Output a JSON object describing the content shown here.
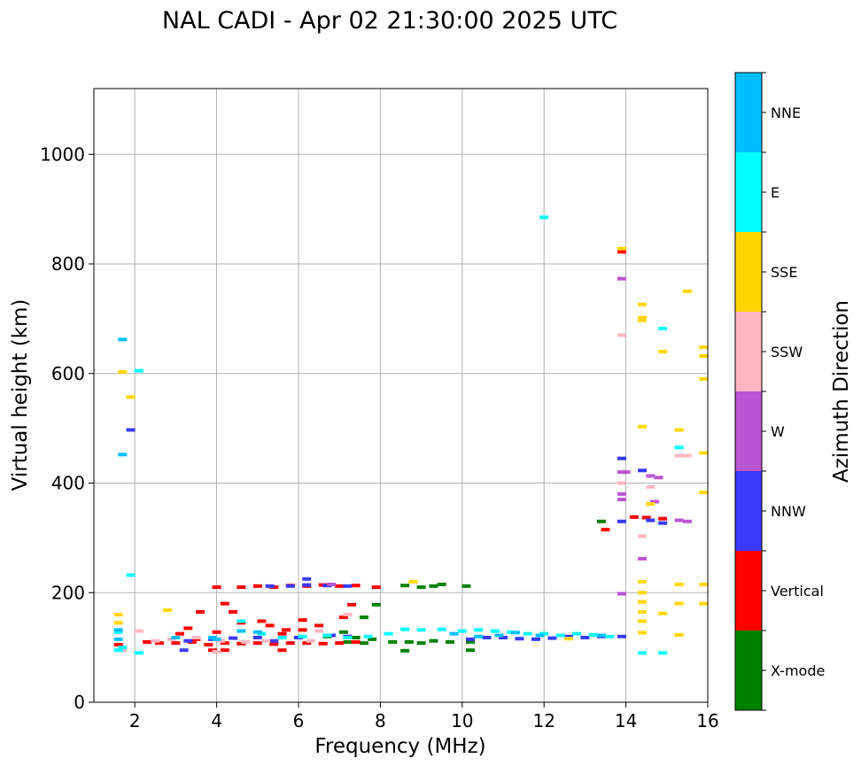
{
  "chart_data": {
    "type": "scatter",
    "title": "NAL CADI - Apr 02 21:30:00 2025 UTC",
    "xlabel": "Frequency (MHz)",
    "ylabel": "Virtual height (km)",
    "xlim": [
      1,
      16
    ],
    "ylim": [
      0,
      1120
    ],
    "xticks": [
      2,
      4,
      6,
      8,
      10,
      12,
      14,
      16
    ],
    "yticks": [
      0,
      200,
      400,
      600,
      800,
      1000
    ],
    "grid": true,
    "colorbar": {
      "label": "Azimuth Direction",
      "position": "right",
      "categories": [
        {
          "name": "X-mode",
          "color": "#008000"
        },
        {
          "name": "Vertical",
          "color": "#ff0000"
        },
        {
          "name": "NNW",
          "color": "#3a3aff"
        },
        {
          "name": "W",
          "color": "#ba55d3"
        },
        {
          "name": "SSW",
          "color": "#ffb6c1"
        },
        {
          "name": "SSE",
          "color": "#ffd700"
        },
        {
          "name": "E",
          "color": "#00ffff"
        },
        {
          "name": "NNE",
          "color": "#00bfff"
        }
      ]
    },
    "series": [
      {
        "name": "X-mode",
        "points": [
          [
            7.8,
            115
          ],
          [
            8.3,
            110
          ],
          [
            8.7,
            110
          ],
          [
            9.0,
            108
          ],
          [
            9.3,
            112
          ],
          [
            9.7,
            110
          ],
          [
            10.2,
            110
          ],
          [
            7.2,
            110
          ],
          [
            7.6,
            108
          ],
          [
            8.6,
            213
          ],
          [
            9.0,
            210
          ],
          [
            9.3,
            212
          ],
          [
            9.5,
            215
          ],
          [
            10.1,
            212
          ],
          [
            7.9,
            178
          ],
          [
            7.6,
            155
          ],
          [
            8.6,
            94
          ],
          [
            10.2,
            95
          ],
          [
            13.4,
            330
          ],
          [
            7.1,
            128
          ],
          [
            7.4,
            118
          ],
          [
            6.7,
            120
          ]
        ]
      },
      {
        "name": "Vertical",
        "points": [
          [
            2.3,
            110
          ],
          [
            2.6,
            108
          ],
          [
            3.0,
            108
          ],
          [
            3.4,
            110
          ],
          [
            3.8,
            105
          ],
          [
            4.2,
            108
          ],
          [
            4.6,
            107
          ],
          [
            5.0,
            108
          ],
          [
            5.4,
            106
          ],
          [
            5.8,
            108
          ],
          [
            6.2,
            108
          ],
          [
            6.6,
            107
          ],
          [
            7.0,
            108
          ],
          [
            7.4,
            110
          ],
          [
            4.0,
            210
          ],
          [
            4.6,
            210
          ],
          [
            5.0,
            212
          ],
          [
            5.4,
            210
          ],
          [
            5.8,
            213
          ],
          [
            6.2,
            212
          ],
          [
            6.6,
            214
          ],
          [
            7.0,
            212
          ],
          [
            7.4,
            213
          ],
          [
            7.9,
            210
          ],
          [
            4.2,
            180
          ],
          [
            4.4,
            165
          ],
          [
            3.6,
            165
          ],
          [
            3.3,
            135
          ],
          [
            3.1,
            125
          ],
          [
            3.5,
            115
          ],
          [
            4.0,
            128
          ],
          [
            4.6,
            145
          ],
          [
            5.1,
            148
          ],
          [
            5.7,
            132
          ],
          [
            6.1,
            150
          ],
          [
            6.5,
            140
          ],
          [
            7.1,
            155
          ],
          [
            7.3,
            178
          ],
          [
            3.9,
            95
          ],
          [
            4.2,
            95
          ],
          [
            5.6,
            95
          ],
          [
            6.1,
            132
          ],
          [
            13.9,
            822
          ],
          [
            13.5,
            315
          ],
          [
            14.2,
            338
          ],
          [
            14.9,
            335
          ],
          [
            14.5,
            337
          ],
          [
            1.6,
            105
          ],
          [
            5.3,
            140
          ],
          [
            5.6,
            125
          ]
        ]
      },
      {
        "name": "NNW",
        "points": [
          [
            3.3,
            112
          ],
          [
            3.9,
            115
          ],
          [
            4.4,
            117
          ],
          [
            5.0,
            118
          ],
          [
            5.4,
            112
          ],
          [
            6.0,
            118
          ],
          [
            6.8,
            122
          ],
          [
            7.2,
            120
          ],
          [
            10.2,
            115
          ],
          [
            10.6,
            118
          ],
          [
            11.0,
            118
          ],
          [
            11.4,
            116
          ],
          [
            11.8,
            115
          ],
          [
            12.2,
            117
          ],
          [
            12.6,
            120
          ],
          [
            13.0,
            118
          ],
          [
            13.4,
            120
          ],
          [
            13.9,
            120
          ],
          [
            5.3,
            212
          ],
          [
            5.8,
            212
          ],
          [
            6.2,
            214
          ],
          [
            6.7,
            213
          ],
          [
            7.2,
            212
          ],
          [
            1.9,
            497
          ],
          [
            13.9,
            445
          ],
          [
            14.4,
            423
          ],
          [
            14.6,
            332
          ],
          [
            14.9,
            327
          ],
          [
            13.9,
            330
          ],
          [
            6.2,
            225
          ],
          [
            3.2,
            95
          ]
        ]
      },
      {
        "name": "W",
        "points": [
          [
            13.9,
            773
          ],
          [
            13.9,
            420
          ],
          [
            14.0,
            420
          ],
          [
            14.6,
            413
          ],
          [
            13.9,
            380
          ],
          [
            13.9,
            370
          ],
          [
            14.4,
            262
          ],
          [
            14.8,
            410
          ],
          [
            15.3,
            332
          ],
          [
            15.5,
            330
          ],
          [
            13.9,
            198
          ],
          [
            6.8,
            215
          ],
          [
            14.7,
            366
          ]
        ]
      },
      {
        "name": "SSW",
        "points": [
          [
            2.5,
            112
          ],
          [
            2.9,
            115
          ],
          [
            3.5,
            118
          ],
          [
            4.1,
            112
          ],
          [
            4.7,
            110
          ],
          [
            5.2,
            112
          ],
          [
            6.3,
            112
          ],
          [
            1.7,
            95
          ],
          [
            2.1,
            130
          ],
          [
            4.0,
            92
          ],
          [
            13.9,
            670
          ],
          [
            14.4,
            303
          ],
          [
            14.6,
            393
          ],
          [
            15.3,
            450
          ],
          [
            15.5,
            450
          ],
          [
            13.9,
            400
          ],
          [
            6.5,
            130
          ],
          [
            7.2,
            160
          ]
        ]
      },
      {
        "name": "SSE",
        "points": [
          [
            1.6,
            160
          ],
          [
            1.6,
            145
          ],
          [
            1.7,
            603
          ],
          [
            1.9,
            557
          ],
          [
            2.8,
            168
          ],
          [
            14.4,
            702
          ],
          [
            14.4,
            697
          ],
          [
            14.4,
            726
          ],
          [
            14.9,
            640
          ],
          [
            15.5,
            750
          ],
          [
            15.9,
            648
          ],
          [
            15.9,
            632
          ],
          [
            15.9,
            590
          ],
          [
            15.9,
            455
          ],
          [
            15.9,
            383
          ],
          [
            15.3,
            497
          ],
          [
            14.4,
            503
          ],
          [
            15.9,
            215
          ],
          [
            15.3,
            215
          ],
          [
            15.9,
            180
          ],
          [
            15.3,
            180
          ],
          [
            14.4,
            220
          ],
          [
            14.4,
            200
          ],
          [
            14.4,
            183
          ],
          [
            14.4,
            165
          ],
          [
            14.4,
            148
          ],
          [
            14.4,
            127
          ],
          [
            14.9,
            162
          ],
          [
            15.3,
            123
          ],
          [
            13.9,
            828
          ],
          [
            14.6,
            362
          ],
          [
            12.6,
            116
          ],
          [
            8.8,
            220
          ]
        ]
      },
      {
        "name": "E",
        "points": [
          [
            1.6,
            128
          ],
          [
            1.6,
            95
          ],
          [
            1.7,
            100
          ],
          [
            2.1,
            605
          ],
          [
            1.9,
            232
          ],
          [
            2.1,
            90
          ],
          [
            4.6,
            148
          ],
          [
            5.1,
            125
          ],
          [
            5.6,
            118
          ],
          [
            6.1,
            120
          ],
          [
            6.7,
            122
          ],
          [
            7.2,
            118
          ],
          [
            7.7,
            120
          ],
          [
            8.2,
            125
          ],
          [
            8.6,
            133
          ],
          [
            9.0,
            132
          ],
          [
            9.5,
            133
          ],
          [
            10.0,
            130
          ],
          [
            10.4,
            132
          ],
          [
            10.8,
            130
          ],
          [
            11.2,
            128
          ],
          [
            11.6,
            125
          ],
          [
            12.0,
            125
          ],
          [
            12.4,
            122
          ],
          [
            12.8,
            125
          ],
          [
            13.2,
            123
          ],
          [
            13.6,
            120
          ],
          [
            12.0,
            885
          ],
          [
            14.9,
            682
          ],
          [
            14.4,
            90
          ],
          [
            14.9,
            90
          ],
          [
            15.3,
            465
          ]
        ]
      },
      {
        "name": "NNE",
        "points": [
          [
            1.6,
            132
          ],
          [
            1.6,
            115
          ],
          [
            1.7,
            662
          ],
          [
            1.7,
            452
          ],
          [
            3.0,
            118
          ],
          [
            4.0,
            115
          ],
          [
            4.6,
            130
          ],
          [
            5.0,
            128
          ],
          [
            9.8,
            125
          ],
          [
            10.4,
            120
          ],
          [
            10.9,
            122
          ],
          [
            11.3,
            127
          ],
          [
            11.9,
            122
          ],
          [
            13.4,
            122
          ],
          [
            3.9,
            118
          ]
        ]
      }
    ]
  }
}
